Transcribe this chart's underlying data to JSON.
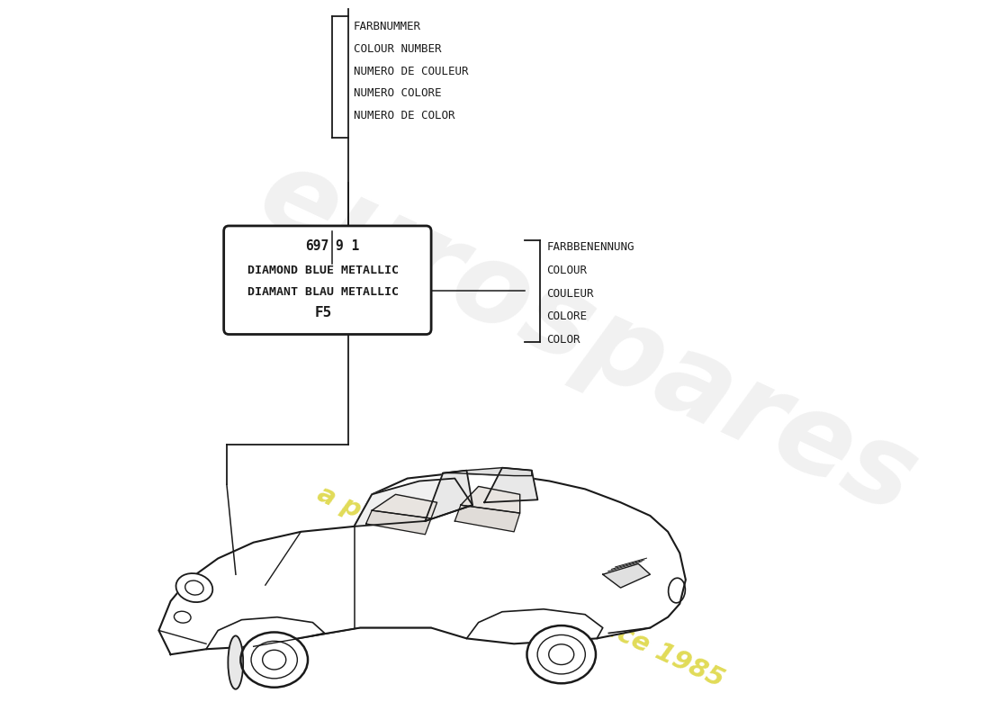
{
  "bg_color": "#ffffff",
  "top_bracket_lines": [
    "FARBNUMMER",
    "COLOUR NUMBER",
    "NUMERO DE COULEUR",
    "NUMERO COLORE",
    "NUMERO DE COLOR"
  ],
  "right_bracket_lines": [
    "FARBBENENNUNG",
    "COLOUR",
    "COULEUR",
    "COLORE",
    "COLOR"
  ],
  "label_box_line1a": "697",
  "label_box_line1b": "9 1",
  "label_box_line2": "DIAMOND BLUE METALLIC",
  "label_box_line3": "DIAMANT BLAU METALLIC",
  "label_box_line4": "F5",
  "line_color": "#1a1a1a",
  "text_color": "#1a1a1a",
  "watermark_color1": "#cccccc",
  "watermark_color2": "#d4cc10",
  "font_size_labels": 9.0,
  "font_size_box_small": 9.5,
  "font_size_box_large": 11.5,
  "font_size_code": 10.5
}
